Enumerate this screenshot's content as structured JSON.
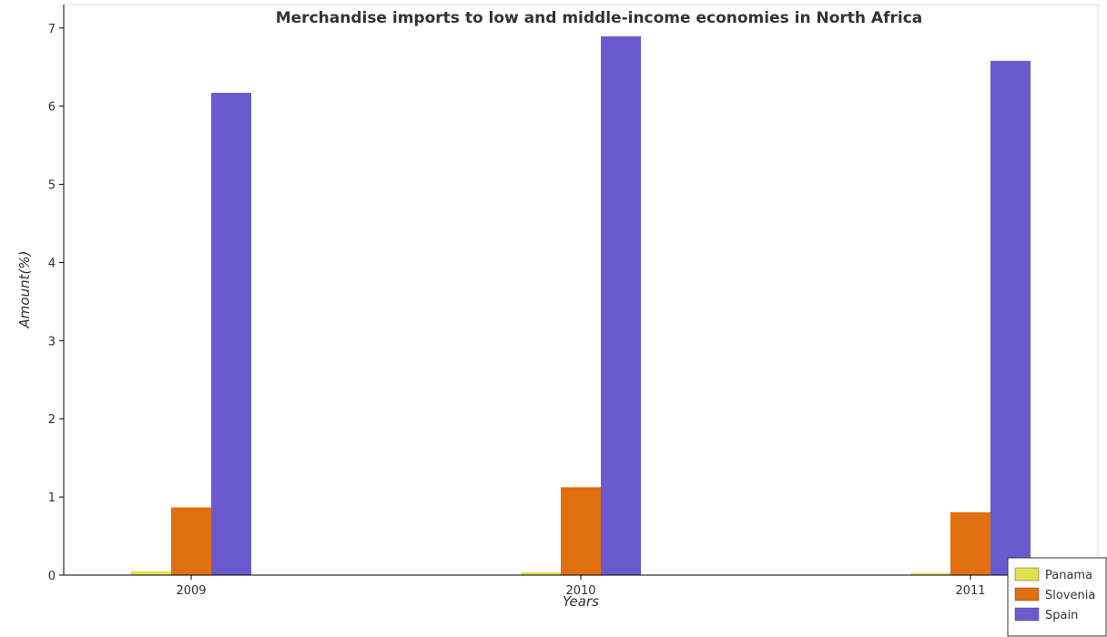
{
  "chart_data": {
    "type": "bar",
    "title": "Merchandise imports to low and middle-income economies in North Africa",
    "xlabel": "Years",
    "ylabel": "Amount(%)",
    "categories": [
      "2009",
      "2010",
      "2011"
    ],
    "ylim": [
      0,
      7.3
    ],
    "yticks": [
      "0",
      "1",
      "2",
      "3",
      "4",
      "5",
      "6",
      "7"
    ],
    "grid": false,
    "legend_position": "bottom-right",
    "series": [
      {
        "name": "Panama",
        "color": "#e3df4c",
        "values": [
          0.05,
          0.035,
          0.025
        ]
      },
      {
        "name": "Slovenia",
        "color": "#e07010",
        "values": [
          0.867,
          1.125,
          0.804
        ]
      },
      {
        "name": "Spain",
        "color": "#6a5acd",
        "values": [
          6.17,
          6.893,
          6.58
        ]
      }
    ]
  }
}
